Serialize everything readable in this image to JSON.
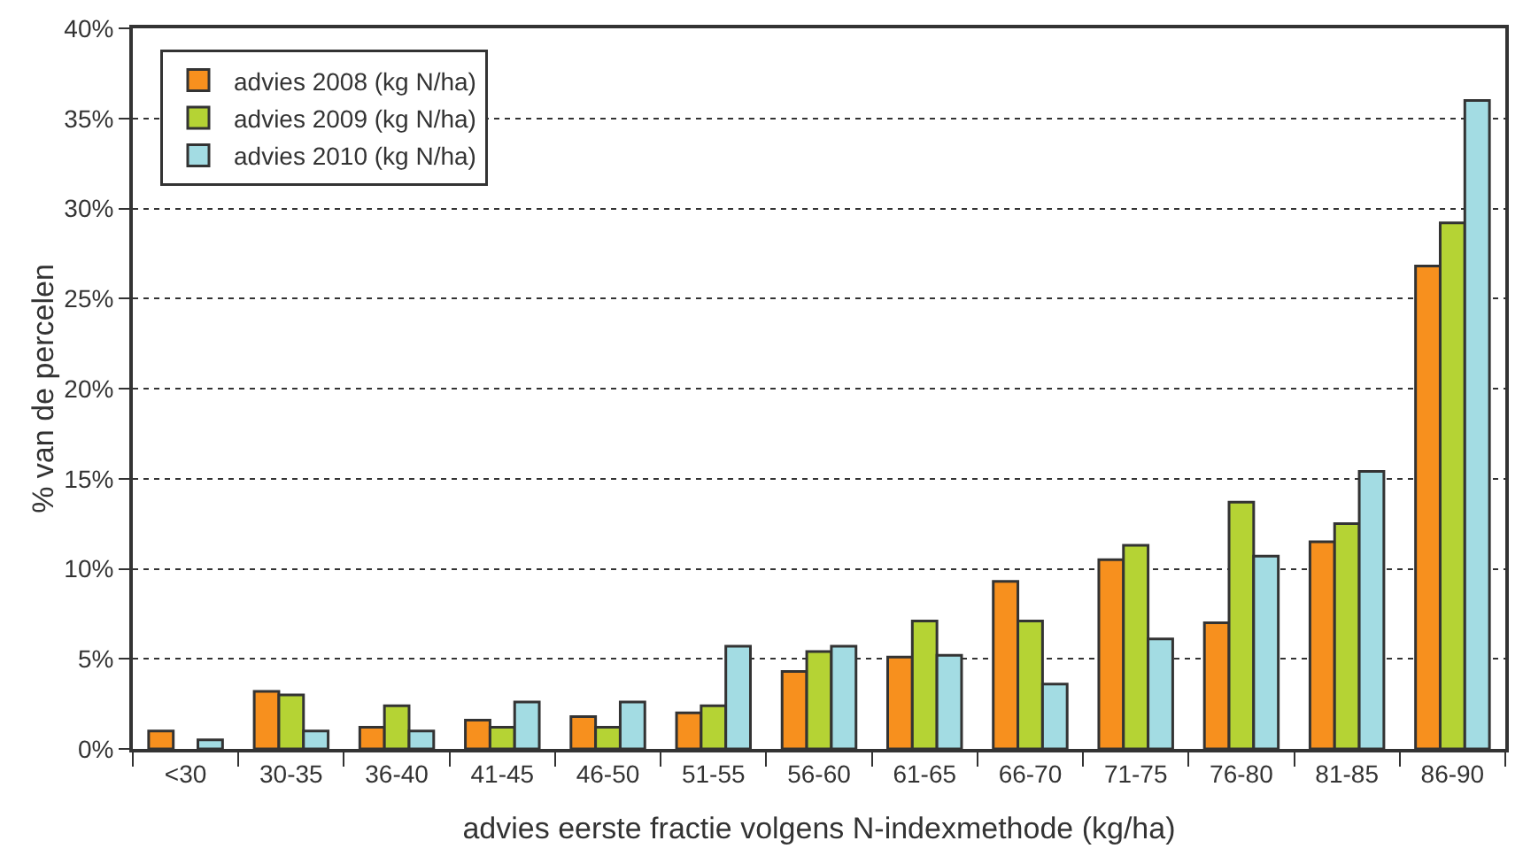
{
  "chart_data": {
    "type": "bar",
    "xlabel": "advies eerste fractie volgens N-indexmethode (kg/ha)",
    "ylabel": "% van de percelen",
    "categories": [
      "<30",
      "30-35",
      "36-40",
      "41-45",
      "46-50",
      "51-55",
      "56-60",
      "61-65",
      "66-70",
      "71-75",
      "76-80",
      "81-85",
      "86-90"
    ],
    "series": [
      {
        "name": "advies 2008 (kg N/ha)",
        "color": "#f7901e",
        "values": [
          1.0,
          3.2,
          1.2,
          1.6,
          1.8,
          2.0,
          4.3,
          5.1,
          9.3,
          10.5,
          7.0,
          11.5,
          26.8
        ]
      },
      {
        "name": "advies 2009 (kg N/ha)",
        "color": "#b5d334",
        "values": [
          null,
          3.0,
          2.4,
          1.2,
          1.2,
          2.4,
          5.4,
          7.1,
          7.1,
          11.3,
          13.7,
          12.5,
          29.2
        ]
      },
      {
        "name": "advies 2010 (kg N/ha)",
        "color": "#a3dce3",
        "values": [
          0.5,
          1.0,
          1.0,
          2.6,
          2.6,
          5.7,
          5.7,
          5.2,
          3.6,
          6.1,
          10.7,
          15.4,
          36.0
        ]
      }
    ],
    "ylim": [
      0,
      40
    ],
    "yticks": [
      {
        "value": 0,
        "label": "0%"
      },
      {
        "value": 5,
        "label": "5%"
      },
      {
        "value": 10,
        "label": "10%"
      },
      {
        "value": 15,
        "label": "15%"
      },
      {
        "value": 20,
        "label": "20%"
      },
      {
        "value": 25,
        "label": "25%"
      },
      {
        "value": 30,
        "label": "30%"
      },
      {
        "value": 35,
        "label": "35%"
      },
      {
        "value": 40,
        "label": "40%"
      }
    ],
    "grid": "y",
    "legend": "top left"
  }
}
